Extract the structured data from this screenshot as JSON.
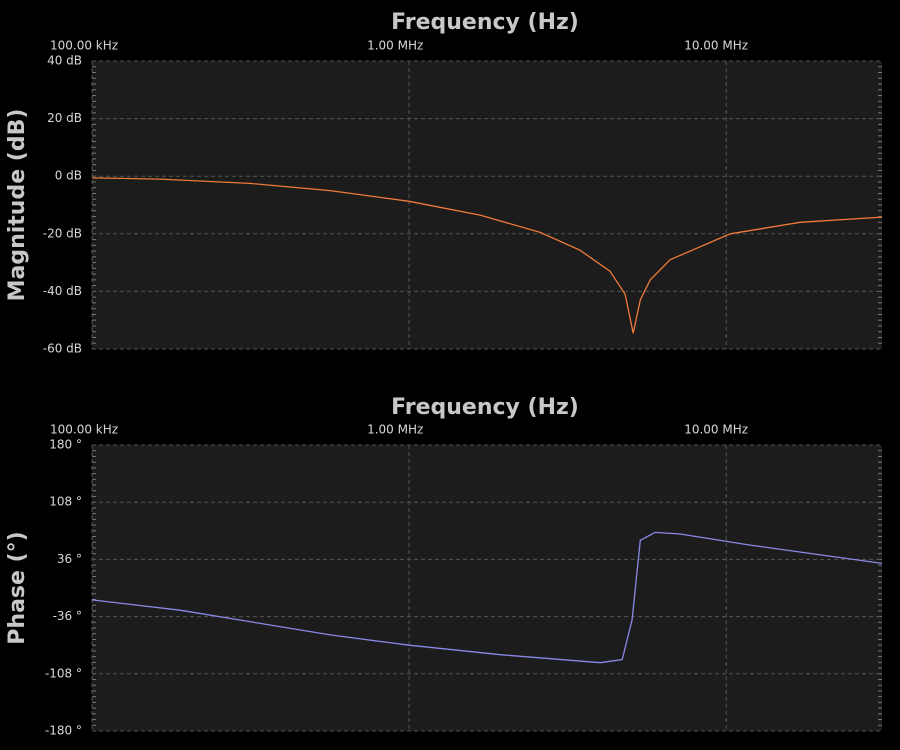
{
  "chart_data": [
    {
      "type": "line",
      "x_label": "Frequency (Hz)",
      "y_label": "Magnitude (dB)",
      "xscale": "log",
      "grid": true,
      "xlim": [
        100000,
        31000000
      ],
      "xticks": [
        {
          "value": 100000,
          "label": "100.00 kHz"
        },
        {
          "value": 1000000,
          "label": "1.00 MHz"
        },
        {
          "value": 10000000,
          "label": "10.00 MHz"
        }
      ],
      "ylim": [
        -60,
        40
      ],
      "yticks": [
        {
          "value": 40,
          "label": "40 dB"
        },
        {
          "value": 20,
          "label": "20 dB"
        },
        {
          "value": 0,
          "label": "0 dB"
        },
        {
          "value": -20,
          "label": "-20 dB"
        },
        {
          "value": -40,
          "label": "-40 dB"
        },
        {
          "value": -60,
          "label": "-60 dB"
        }
      ],
      "x": [
        100000,
        163900,
        315000,
        564000,
        1000000,
        1675000,
        2590000,
        3460000,
        4300000,
        4800000,
        5090000,
        5360000,
        5760000,
        6660000,
        10300000,
        17100000,
        31000000
      ],
      "series": [
        {
          "color": "#f07a3a",
          "values": [
            -0.6,
            -1,
            -2.5,
            -5,
            -8.7,
            -13.5,
            -19.5,
            -25.7,
            -33,
            -41,
            -54.5,
            -43,
            -36,
            -29,
            -20,
            -16,
            -14.2
          ]
        }
      ]
    },
    {
      "type": "line",
      "x_label": "Frequency (Hz)",
      "y_label": "Phase (°)",
      "xscale": "log",
      "grid": true,
      "xlim": [
        100000,
        31000000
      ],
      "xticks": [
        {
          "value": 100000,
          "label": "100.00 kHz"
        },
        {
          "value": 1000000,
          "label": "1.00 MHz"
        },
        {
          "value": 10000000,
          "label": "10.00 MHz"
        }
      ],
      "ylim": [
        -180,
        180
      ],
      "yticks": [
        {
          "value": 180,
          "label": "180 °"
        },
        {
          "value": 108,
          "label": "108 °"
        },
        {
          "value": 36,
          "label": "36 °"
        },
        {
          "value": -36,
          "label": "-36 °"
        },
        {
          "value": -108,
          "label": "-108 °"
        },
        {
          "value": -180,
          "label": "-180 °"
        }
      ],
      "x": [
        100000,
        189600,
        564000,
        1000000,
        1940000,
        4010000,
        4700000,
        5050000,
        5360000,
        5970000,
        7160000,
        11900000,
        31000000
      ],
      "series": [
        {
          "color": "#8a88e8",
          "values": [
            -15,
            -28,
            -59,
            -72,
            -84,
            -94,
            -90,
            -40,
            60,
            70,
            68,
            54,
            31
          ]
        }
      ]
    }
  ]
}
